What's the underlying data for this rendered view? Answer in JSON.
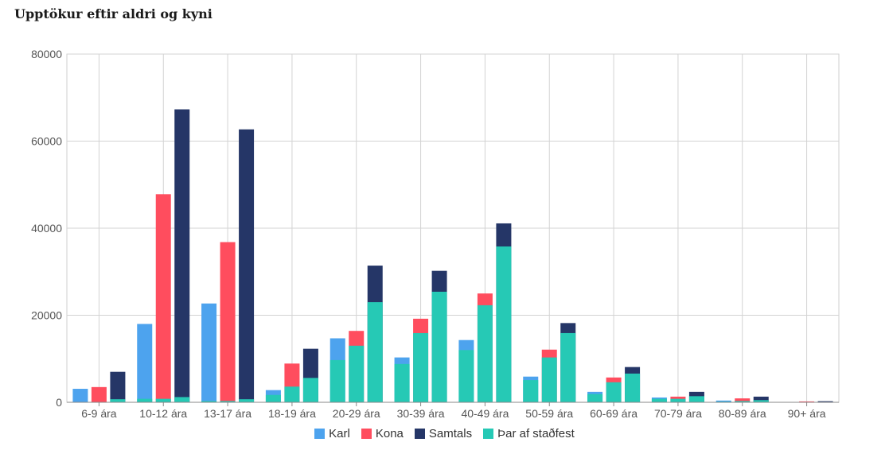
{
  "chart_data": {
    "type": "bar",
    "title": "Upptökur eftir aldri og kyni",
    "categories": [
      "6-9 ára",
      "10-12 ára",
      "13-17 ára",
      "18-19 ára",
      "20-29 ára",
      "30-39 ára",
      "40-49 ára",
      "50-59 ára",
      "60-69 ára",
      "70-79 ára",
      "80-89 ára",
      "90+ ára"
    ],
    "ylim": [
      0,
      80000
    ],
    "yticks": [
      0,
      20000,
      40000,
      60000,
      80000
    ],
    "grid": true,
    "legend_position": "bottom",
    "bars": [
      {
        "name": "Karl",
        "color": "#4da3ee",
        "values": [
          3100,
          18000,
          22700,
          2800,
          14700,
          10300,
          14300,
          5900,
          2400,
          1100,
          400,
          50
        ]
      },
      {
        "name": "Kona",
        "color": "#ff4d5e",
        "values": [
          3500,
          47800,
          36800,
          8900,
          16400,
          19200,
          25000,
          12100,
          5700,
          1300,
          900,
          200
        ]
      },
      {
        "name": "Samtals",
        "color": "#253667",
        "values": [
          7000,
          67300,
          62700,
          12300,
          31400,
          30200,
          41100,
          18200,
          8100,
          2400,
          1300,
          250
        ]
      }
    ],
    "overlay": {
      "name": "Þar af staðfest",
      "color": "#26c9b5",
      "values": [
        [
          0,
          800,
          300,
          1700,
          9700,
          8800,
          12000,
          5100,
          1900,
          800,
          150,
          0
        ],
        [
          0,
          800,
          300,
          3600,
          13000,
          15900,
          22300,
          10300,
          4600,
          800,
          300,
          0
        ],
        [
          700,
          1200,
          700,
          5600,
          23000,
          25400,
          35800,
          15900,
          6600,
          1400,
          500,
          0
        ]
      ]
    },
    "legend": [
      {
        "label": "Karl",
        "color": "#4da3ee"
      },
      {
        "label": "Kona",
        "color": "#ff4d5e"
      },
      {
        "label": "Samtals",
        "color": "#253667"
      },
      {
        "label": "Þar af staðfest",
        "color": "#26c9b5"
      }
    ]
  }
}
